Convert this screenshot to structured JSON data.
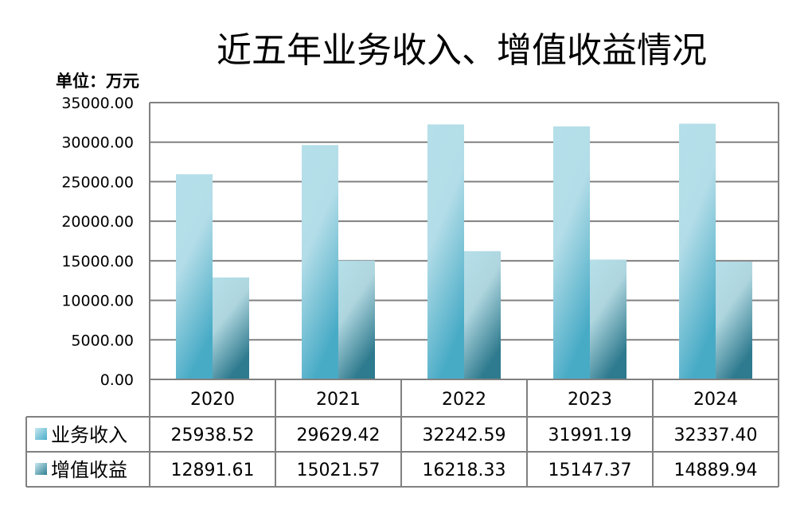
{
  "chart_data": {
    "type": "bar",
    "title": "近五年业务收入、增值收益情况",
    "unit_label": "单位：万元",
    "categories": [
      "2020",
      "2021",
      "2022",
      "2023",
      "2024"
    ],
    "series": [
      {
        "name": "业务收入",
        "values": [
          25938.52,
          29629.42,
          32242.59,
          31991.19,
          32337.4
        ]
      },
      {
        "name": "增值收益",
        "values": [
          12891.61,
          15021.57,
          16218.33,
          15147.37,
          14889.94
        ]
      }
    ],
    "ylim": [
      0,
      35000
    ],
    "yticks": [
      "0.00",
      "5000.00",
      "10000.00",
      "15000.00",
      "20000.00",
      "25000.00",
      "30000.00",
      "35000.00"
    ],
    "table_values": [
      [
        "25938.52",
        "29629.42",
        "32242.59",
        "31991.19",
        "32337.40"
      ],
      [
        "12891.61",
        "15021.57",
        "16218.33",
        "15147.37",
        "14889.94"
      ]
    ],
    "grid": true,
    "legend": "data-table",
    "colors": {
      "series1_light": "#b5dfe9",
      "series1_dark": "#4aaec8",
      "series2_light": "#b5dfe9",
      "series2_dark": "#2f7f92",
      "grid": "#808080"
    }
  }
}
